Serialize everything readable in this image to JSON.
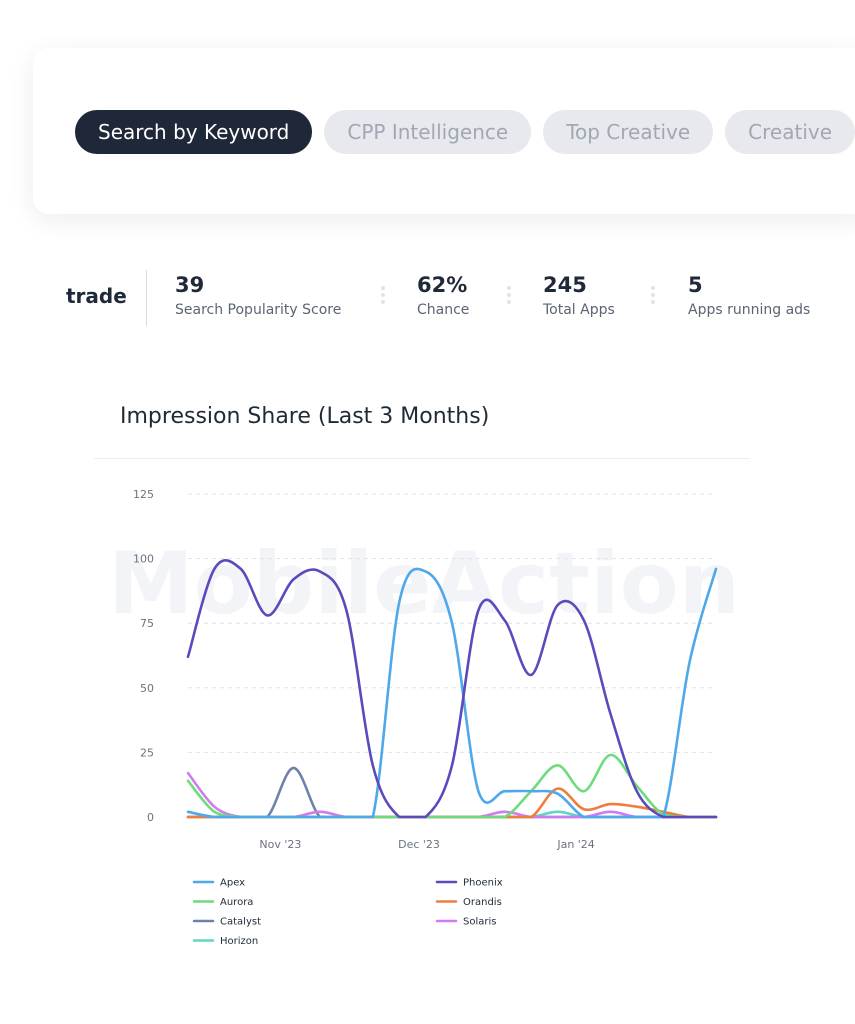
{
  "tabs": [
    {
      "label": "Search by Keyword",
      "active": true
    },
    {
      "label": "CPP Intelligence",
      "active": false
    },
    {
      "label": "Top Creative",
      "active": false
    },
    {
      "label": "Creative",
      "active": false
    }
  ],
  "stats": {
    "keyword": "trade",
    "items": [
      {
        "value": "39",
        "label": "Search Popularity Score"
      },
      {
        "value": "62%",
        "label": "Chance"
      },
      {
        "value": "245",
        "label": "Total Apps"
      },
      {
        "value": "5",
        "label": "Apps running ads"
      }
    ]
  },
  "watermark": "MobileAction",
  "chart_data": {
    "type": "line",
    "title": "Impression Share (Last 3 Months)",
    "xlabel": "",
    "ylabel": "",
    "ylim": [
      0,
      125
    ],
    "yticks": [
      0,
      25,
      50,
      75,
      100,
      125
    ],
    "xticks": [
      {
        "label": "Nov '23",
        "x": 3.5
      },
      {
        "label": "Dec '23",
        "x": 8.75
      },
      {
        "label": "Jan '24",
        "x": 14.7
      }
    ],
    "grid": true,
    "legend_position": "bottom",
    "x": [
      0,
      1,
      2,
      3,
      4,
      5,
      6,
      7,
      8,
      9,
      10,
      11,
      12,
      13,
      14,
      15,
      16,
      17,
      18,
      19,
      20
    ],
    "series": [
      {
        "name": "Apex",
        "color": "#4fa8ea",
        "values": [
          2,
          0,
          0,
          0,
          0,
          0,
          0,
          0,
          83,
          95,
          75,
          10,
          10,
          10,
          9,
          0,
          0,
          0,
          0,
          60,
          96
        ]
      },
      {
        "name": "Aurora",
        "color": "#6edc7c",
        "values": [
          14,
          2,
          0,
          0,
          0,
          0,
          0,
          0,
          0,
          0,
          0,
          0,
          0,
          10,
          20,
          10,
          24,
          12,
          1,
          0,
          0
        ]
      },
      {
        "name": "Catalyst",
        "color": "#6d81ad",
        "values": [
          0,
          0,
          0,
          0,
          19,
          0,
          0,
          0,
          0,
          0,
          0,
          0,
          0,
          0,
          0,
          0,
          0,
          0,
          0,
          0,
          0
        ]
      },
      {
        "name": "Horizon",
        "color": "#5fd6c6",
        "values": [
          0,
          0,
          0,
          0,
          0,
          0,
          0,
          0,
          0,
          0,
          0,
          0,
          0,
          0,
          2,
          0,
          0,
          0,
          0,
          0,
          0
        ]
      },
      {
        "name": "Phoenix",
        "color": "#5a4bbd",
        "values": [
          62,
          96,
          96,
          78,
          92,
          95,
          80,
          20,
          0,
          0,
          20,
          80,
          76,
          55,
          82,
          76,
          40,
          10,
          0,
          0,
          0
        ]
      },
      {
        "name": "Orandis",
        "color": "#ee7d3e",
        "values": [
          0,
          0,
          0,
          0,
          0,
          0,
          0,
          0,
          0,
          0,
          0,
          0,
          0,
          0,
          11,
          3,
          5,
          4,
          2,
          0,
          0
        ]
      },
      {
        "name": "Solaris",
        "color": "#d07cf0",
        "values": [
          17,
          4,
          0,
          0,
          0,
          2,
          0,
          0,
          0,
          0,
          0,
          0,
          2,
          0,
          0,
          0,
          2,
          0,
          0,
          0,
          0
        ]
      }
    ]
  }
}
